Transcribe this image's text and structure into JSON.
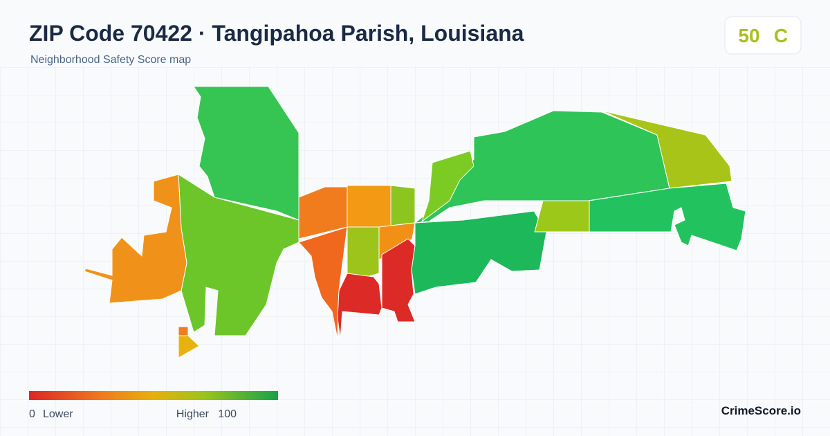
{
  "header": {
    "title": "ZIP Code 70422 · Tangipahoa Parish, Louisiana",
    "subtitle": "Neighborhood Safety Score map"
  },
  "score": {
    "value": "50",
    "grade": "C"
  },
  "legend": {
    "min": "0",
    "min_label": "Lower",
    "max_label": "Higher",
    "max": "100"
  },
  "brand": "CrimeScore.io"
}
